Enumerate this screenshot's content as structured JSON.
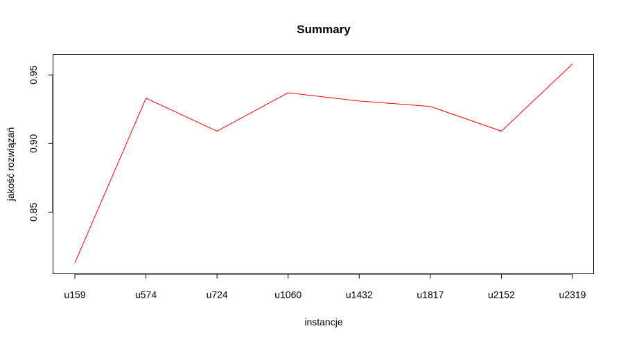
{
  "chart_data": {
    "type": "line",
    "title": "Summary",
    "xlabel": "instancje",
    "ylabel": "jakość rozwiązań",
    "categories": [
      "u159",
      "u574",
      "u724",
      "u1060",
      "u1432",
      "u1817",
      "u2152",
      "u2319"
    ],
    "series": [
      {
        "values": [
          0.813,
          0.933,
          0.909,
          0.937,
          0.931,
          0.927,
          0.909,
          0.958
        ],
        "color": "#ff0000"
      }
    ],
    "ylim": [
      0.805,
      0.965
    ],
    "yticks": [
      "0.85",
      "0.90",
      "0.95"
    ],
    "ytick_values": [
      0.85,
      0.9,
      0.95
    ],
    "grid": false,
    "legend": "none"
  }
}
